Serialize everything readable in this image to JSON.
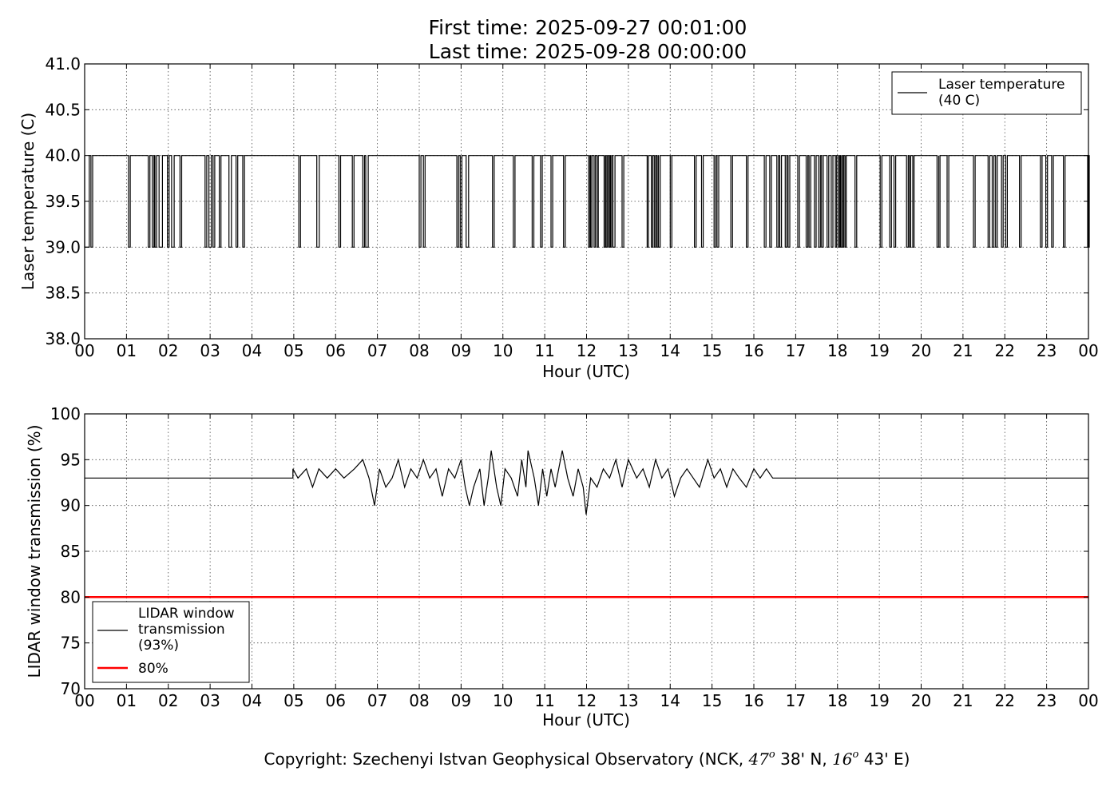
{
  "figure": {
    "title_line1": "First time: 2025-09-27 00:01:00",
    "title_line2": "Last time: 2025-09-28 00:00:00",
    "copyright_prefix": "Copyright: Szechenyi Istvan Geophysical Observatory (NCK, ",
    "lat_deg": "47",
    "lat_rest": " 38' N, ",
    "lon_deg": "16",
    "lon_rest": " 43' E)",
    "degree_symbol": "o"
  },
  "chart_data": [
    {
      "type": "line",
      "xlabel": "Hour (UTC)",
      "ylabel": "Laser temperature (C)",
      "xlim": [
        0,
        24
      ],
      "ylim": [
        38.0,
        41.0
      ],
      "xticks": [
        "00",
        "01",
        "02",
        "03",
        "04",
        "05",
        "06",
        "07",
        "08",
        "09",
        "10",
        "11",
        "12",
        "13",
        "14",
        "15",
        "16",
        "17",
        "18",
        "19",
        "20",
        "21",
        "22",
        "23",
        "00"
      ],
      "yticks": [
        "38.0",
        "38.5",
        "39.0",
        "39.5",
        "40.0",
        "40.5",
        "41.0"
      ],
      "ytick_values": [
        38.0,
        38.5,
        39.0,
        39.5,
        40.0,
        40.5,
        41.0
      ],
      "grid": true,
      "legend_position": "top-right",
      "series": [
        {
          "name": "Laser temperature (40 C)",
          "legend_lines": [
            "Laser temperature",
            "(40 C)"
          ],
          "color": "#000000",
          "baseline": 40.0,
          "dip_value": 39.0,
          "dips_hours": [
            0.0,
            0.15,
            1.05,
            1.52,
            1.62,
            1.68,
            1.78,
            1.98,
            2.08,
            2.28,
            2.88,
            2.97,
            3.07,
            3.22,
            3.45,
            3.62,
            3.78,
            5.12,
            5.55,
            6.08,
            6.4,
            6.65,
            6.72,
            8.0,
            8.1,
            8.9,
            8.98,
            9.12,
            9.75,
            10.25,
            10.7,
            10.9,
            11.15,
            11.45,
            12.05,
            12.1,
            12.18,
            12.25,
            12.42,
            12.47,
            12.53,
            12.57,
            12.63,
            12.85,
            13.45,
            13.55,
            13.62,
            13.68,
            13.72,
            14.0,
            14.58,
            14.75,
            15.05,
            15.12,
            15.45,
            15.82,
            16.25,
            16.38,
            16.55,
            16.62,
            16.75,
            16.82,
            17.05,
            17.25,
            17.32,
            17.45,
            17.55,
            17.62,
            17.75,
            17.85,
            17.95,
            18.02,
            18.07,
            18.12,
            18.18,
            18.42,
            19.02,
            19.25,
            19.35,
            19.65,
            19.72,
            19.8,
            20.38,
            20.42,
            20.62,
            21.25,
            21.6,
            21.7,
            21.78,
            21.92,
            22.02,
            22.35,
            22.85,
            22.98,
            23.12,
            23.4,
            23.98
          ],
          "dip_widths": [
            0.11,
            0.04,
            0.04,
            0.04,
            0.04,
            0.04,
            0.08,
            0.04,
            0.06,
            0.04,
            0.04,
            0.06,
            0.04,
            0.04,
            0.06,
            0.04,
            0.04,
            0.04,
            0.06,
            0.04,
            0.04,
            0.04,
            0.06,
            0.04,
            0.04,
            0.04,
            0.04,
            0.06,
            0.04,
            0.04,
            0.04,
            0.04,
            0.04,
            0.04,
            0.03,
            0.03,
            0.03,
            0.03,
            0.03,
            0.03,
            0.03,
            0.03,
            0.05,
            0.04,
            0.03,
            0.03,
            0.03,
            0.03,
            0.04,
            0.04,
            0.04,
            0.04,
            0.04,
            0.04,
            0.04,
            0.04,
            0.04,
            0.04,
            0.04,
            0.04,
            0.04,
            0.04,
            0.04,
            0.04,
            0.04,
            0.04,
            0.04,
            0.04,
            0.04,
            0.04,
            0.03,
            0.03,
            0.03,
            0.03,
            0.03,
            0.04,
            0.04,
            0.04,
            0.04,
            0.04,
            0.03,
            0.03,
            0.04,
            0.03,
            0.04,
            0.04,
            0.04,
            0.04,
            0.04,
            0.04,
            0.04,
            0.04,
            0.04,
            0.04,
            0.04,
            0.04,
            0.04
          ]
        }
      ]
    },
    {
      "type": "line",
      "xlabel": "Hour (UTC)",
      "ylabel": "LIDAR window transmission (%)",
      "xlim": [
        0,
        24
      ],
      "ylim": [
        70,
        100
      ],
      "xticks": [
        "00",
        "01",
        "02",
        "03",
        "04",
        "05",
        "06",
        "07",
        "08",
        "09",
        "10",
        "11",
        "12",
        "13",
        "14",
        "15",
        "16",
        "17",
        "18",
        "19",
        "20",
        "21",
        "22",
        "23",
        "00"
      ],
      "yticks": [
        "70",
        "75",
        "80",
        "85",
        "90",
        "95",
        "100"
      ],
      "ytick_values": [
        70,
        75,
        80,
        85,
        90,
        95,
        100
      ],
      "grid": true,
      "legend_position": "bottom-left",
      "series": [
        {
          "name": "LIDAR window transmission (93%)",
          "legend_lines": [
            "LIDAR window",
            "transmission",
            "(93%)"
          ],
          "color": "#000000",
          "baseline": 93,
          "active_range_hours": [
            4.98,
            16.45
          ],
          "samples": [
            [
              4.98,
              94
            ],
            [
              5.1,
              93
            ],
            [
              5.3,
              94
            ],
            [
              5.45,
              92
            ],
            [
              5.6,
              94
            ],
            [
              5.8,
              93
            ],
            [
              6.0,
              94
            ],
            [
              6.2,
              93
            ],
            [
              6.45,
              94
            ],
            [
              6.65,
              95
            ],
            [
              6.8,
              93
            ],
            [
              6.93,
              90
            ],
            [
              7.05,
              94
            ],
            [
              7.2,
              92
            ],
            [
              7.35,
              93
            ],
            [
              7.5,
              95
            ],
            [
              7.65,
              92
            ],
            [
              7.8,
              94
            ],
            [
              7.95,
              93
            ],
            [
              8.1,
              95
            ],
            [
              8.25,
              93
            ],
            [
              8.4,
              94
            ],
            [
              8.55,
              91
            ],
            [
              8.7,
              94
            ],
            [
              8.85,
              93
            ],
            [
              9.0,
              95
            ],
            [
              9.1,
              92
            ],
            [
              9.2,
              90
            ],
            [
              9.3,
              92
            ],
            [
              9.45,
              94
            ],
            [
              9.55,
              90
            ],
            [
              9.65,
              93
            ],
            [
              9.72,
              96
            ],
            [
              9.85,
              92
            ],
            [
              9.95,
              90
            ],
            [
              10.05,
              94
            ],
            [
              10.2,
              93
            ],
            [
              10.35,
              91
            ],
            [
              10.45,
              95
            ],
            [
              10.55,
              92
            ],
            [
              10.6,
              96
            ],
            [
              10.75,
              93
            ],
            [
              10.85,
              90
            ],
            [
              10.95,
              94
            ],
            [
              11.05,
              91
            ],
            [
              11.15,
              94
            ],
            [
              11.25,
              92
            ],
            [
              11.42,
              96
            ],
            [
              11.55,
              93
            ],
            [
              11.68,
              91
            ],
            [
              11.8,
              94
            ],
            [
              11.92,
              92
            ],
            [
              11.99,
              89
            ],
            [
              12.1,
              93
            ],
            [
              12.25,
              92
            ],
            [
              12.4,
              94
            ],
            [
              12.55,
              93
            ],
            [
              12.7,
              95
            ],
            [
              12.85,
              92
            ],
            [
              13.0,
              95
            ],
            [
              13.2,
              93
            ],
            [
              13.35,
              94
            ],
            [
              13.5,
              92
            ],
            [
              13.65,
              95
            ],
            [
              13.8,
              93
            ],
            [
              13.95,
              94
            ],
            [
              14.1,
              91
            ],
            [
              14.25,
              93
            ],
            [
              14.4,
              94
            ],
            [
              14.55,
              93
            ],
            [
              14.7,
              92
            ],
            [
              14.9,
              95
            ],
            [
              15.05,
              93
            ],
            [
              15.2,
              94
            ],
            [
              15.35,
              92
            ],
            [
              15.5,
              94
            ],
            [
              15.65,
              93
            ],
            [
              15.82,
              92
            ],
            [
              16.0,
              94
            ],
            [
              16.15,
              93
            ],
            [
              16.3,
              94
            ],
            [
              16.45,
              93
            ]
          ]
        },
        {
          "name": "80%",
          "legend_lines": [
            "80%"
          ],
          "color": "#ff0000",
          "constant": 80
        }
      ]
    }
  ]
}
